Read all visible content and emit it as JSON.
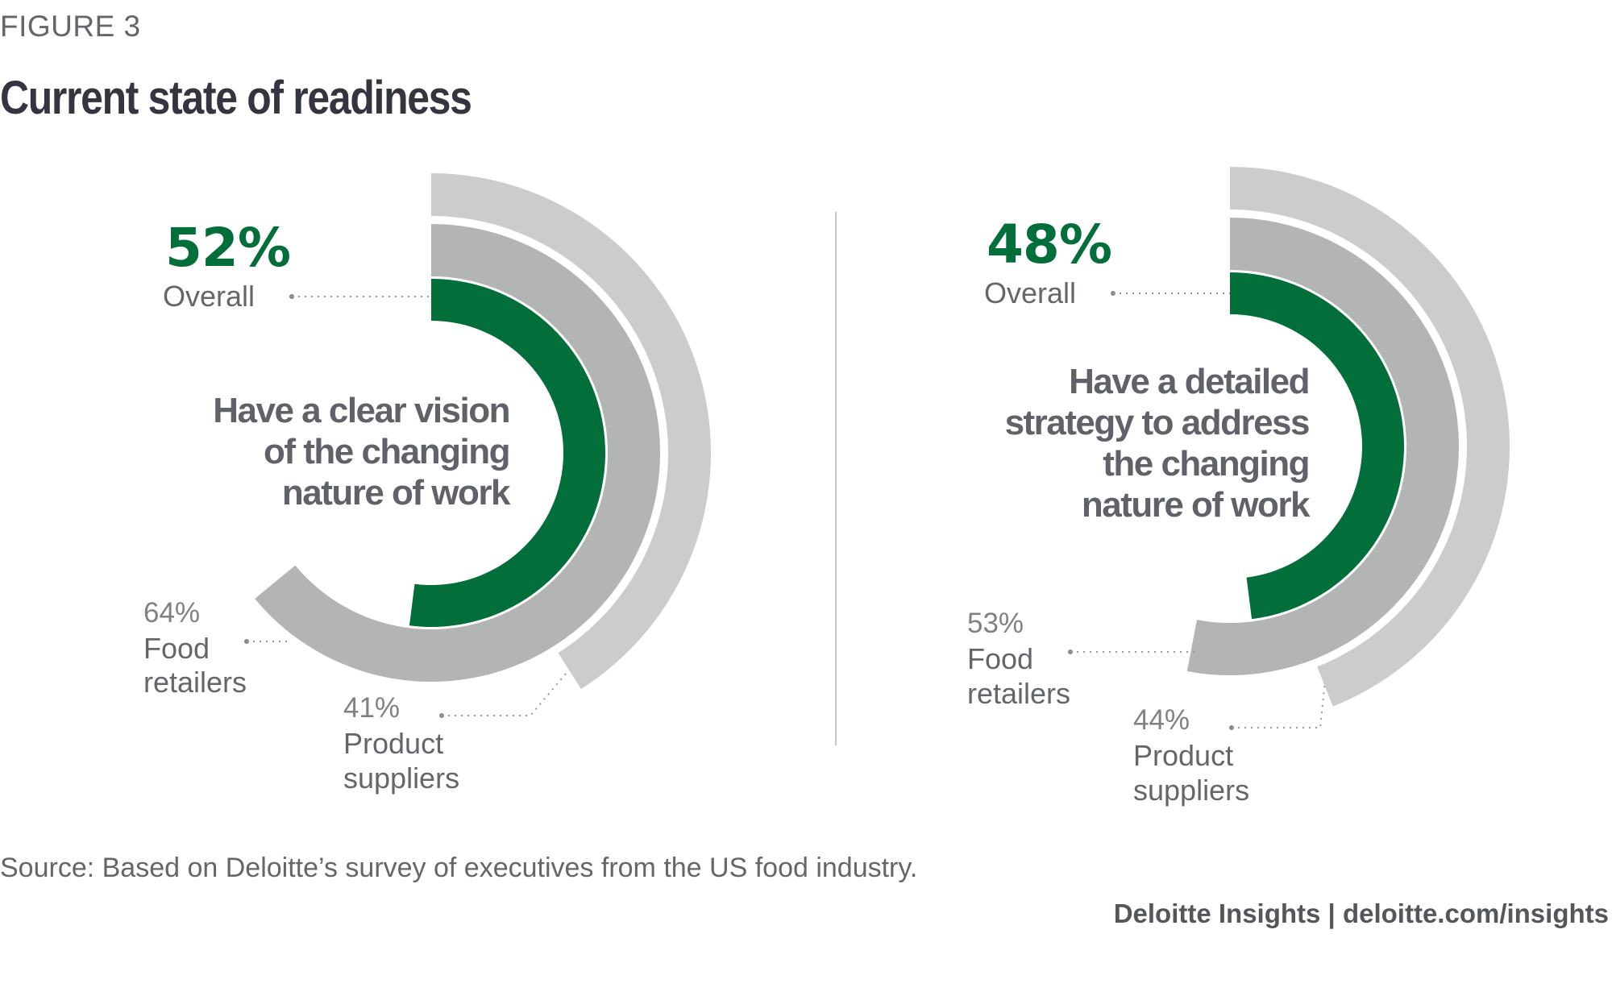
{
  "figure_label": "FIGURE 3",
  "title": "Current state of readiness",
  "source": "Source: Based on Deloitte’s survey of executives from the US food industry.",
  "brand": "Deloitte Insights | deloitte.com/insights",
  "colors": {
    "overall": "#026e39",
    "food_retailers": "#b3b4b4",
    "product_suppliers": "#cccccd",
    "heading_text": "#333640",
    "body_text": "#63666a",
    "divider": "#c8c8c8"
  },
  "chart_data": [
    {
      "type": "radial-bar",
      "title": "Have a clear vision of the changing nature of work",
      "title_lines": [
        "Have a clear vision",
        "of the changing",
        "nature of work"
      ],
      "scale_max": 100,
      "series": [
        {
          "name": "Overall",
          "value": 52,
          "label": "52%"
        },
        {
          "name": "Food retailers",
          "value": 64,
          "label": "64%",
          "name_lines": [
            "Food",
            "retailers"
          ]
        },
        {
          "name": "Product suppliers",
          "value": 41,
          "label": "41%",
          "name_lines": [
            "Product",
            "suppliers"
          ]
        }
      ]
    },
    {
      "type": "radial-bar",
      "title": "Have a detailed strategy to address the changing nature of work",
      "title_lines": [
        "Have a detailed",
        "strategy to address",
        "the changing",
        "nature of work"
      ],
      "scale_max": 100,
      "series": [
        {
          "name": "Overall",
          "value": 48,
          "label": "48%"
        },
        {
          "name": "Food retailers",
          "value": 53,
          "label": "53%",
          "name_lines": [
            "Food",
            "retailers"
          ]
        },
        {
          "name": "Product suppliers",
          "value": 44,
          "label": "44%",
          "name_lines": [
            "Product",
            "suppliers"
          ]
        }
      ]
    }
  ]
}
